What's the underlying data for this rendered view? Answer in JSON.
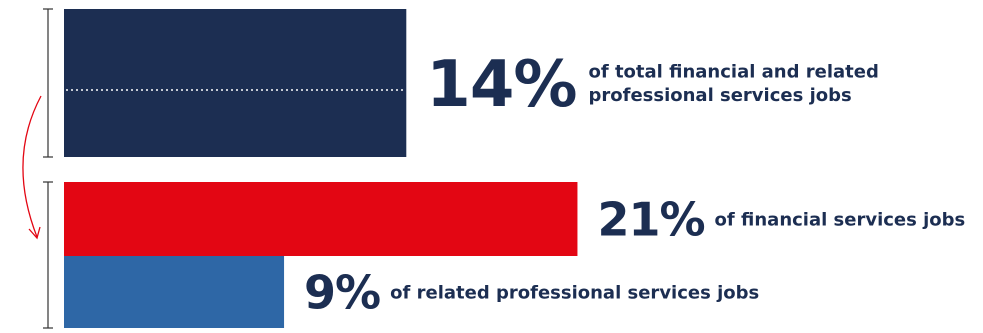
{
  "colors": {
    "navy": "#1c2e52",
    "red": "#e30613",
    "blue": "#2e67a6",
    "arrow": "#e30613",
    "bracket": "#333333",
    "dotted": "#ffffff"
  },
  "chart_data": {
    "type": "bar",
    "orientation": "horizontal",
    "grid": false,
    "xlim": [
      0,
      21
    ],
    "bars": [
      {
        "key": "total",
        "value": 14,
        "label": "14%",
        "text": [
          "of total financial and related",
          "professional services jobs"
        ],
        "color": "#1c2e52"
      },
      {
        "key": "financial",
        "value": 21,
        "label": "21%",
        "text": [
          "of financial services jobs"
        ],
        "color": "#e30613"
      },
      {
        "key": "related",
        "value": 9,
        "label": "9%",
        "text": [
          "of related professional services jobs"
        ],
        "color": "#2e67a6"
      }
    ]
  }
}
